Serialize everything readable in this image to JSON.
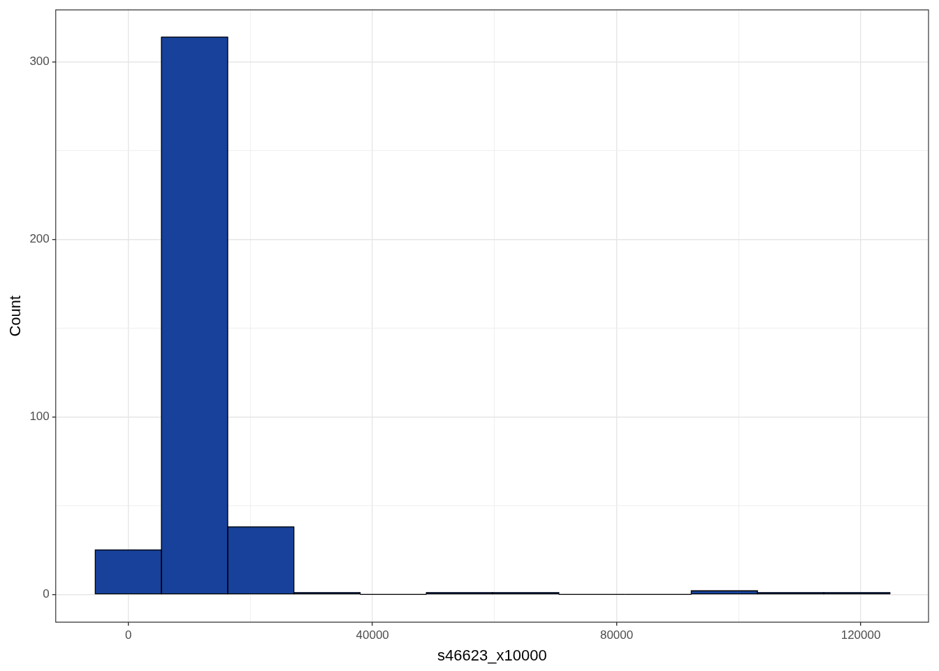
{
  "chart_data": {
    "type": "histogram",
    "xlabel": "s46623_x10000",
    "ylabel": "Count",
    "bins": [
      -5425,
      5425,
      16275,
      27125,
      37975,
      48825,
      59675,
      70525,
      81375,
      92225,
      103075,
      113925,
      124775
    ],
    "values": [
      25,
      314,
      38,
      1,
      0,
      1,
      1,
      0,
      0,
      2,
      1,
      1
    ],
    "color": "#17419a",
    "xlim": [
      -11900,
      131100
    ],
    "xticks": [
      0,
      {
        "value": 20000,
        "label": null
      },
      40000,
      {
        "value": 60000,
        "label": null
      },
      80000,
      {
        "value": 100000,
        "label": null
      },
      120000
    ],
    "ylim": [
      -15.7,
      329.3
    ],
    "yticks": [
      0,
      {
        "value": 50,
        "label": null
      },
      100,
      {
        "value": 150,
        "label": null
      },
      200,
      {
        "value": 250,
        "label": null
      },
      300
    ],
    "grid": true
  }
}
